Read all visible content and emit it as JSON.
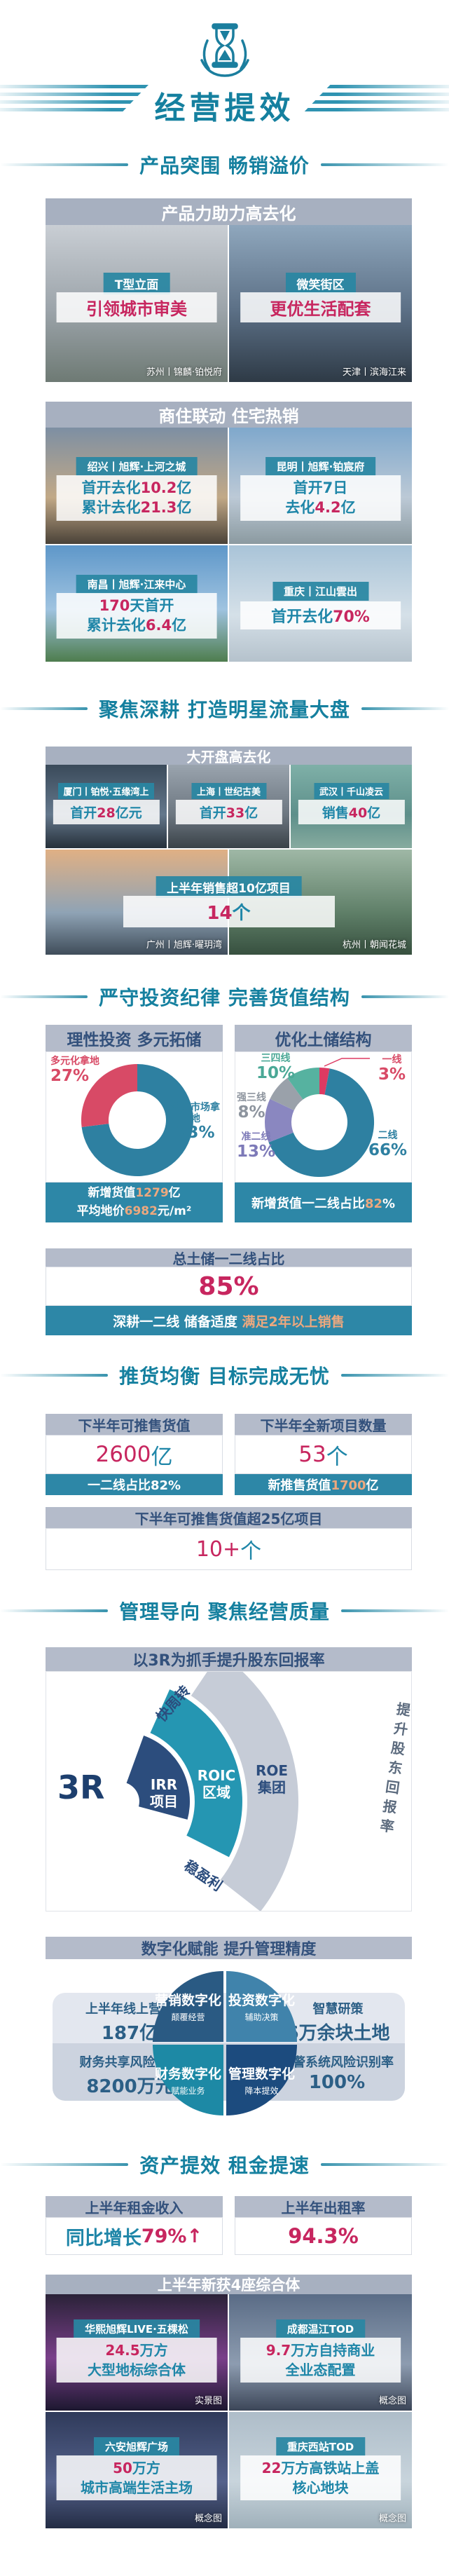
{
  "page_title": "经营提效",
  "headings": {
    "s1": "产品突围 畅销溢价",
    "s2": "聚焦深耕 打造明星流量大盘",
    "s3": "严守投资纪律 完善货值结构",
    "s4": "推货均衡 目标完成无忧",
    "s5": "管理导向 聚焦经营质量",
    "s6": "资产提效 租金提速"
  },
  "panel_product": {
    "header": "产品力助力高去化",
    "tiles": [
      {
        "banner": "T型立面",
        "line": [
          {
            "t": "引领城市审美",
            "c": "red"
          }
        ],
        "caption": "苏州丨锦麟·铂悦府"
      },
      {
        "banner": "微笑街区",
        "line": [
          {
            "t": "更优生活配套",
            "c": "red"
          }
        ],
        "caption": "天津丨滨海江来"
      }
    ]
  },
  "panel_shangzhu": {
    "header": "商住联动 住宅热销",
    "tiles": [
      {
        "banner": "绍兴丨旭辉·上河之城",
        "lines": [
          [
            {
              "t": "首开去化",
              "c": "teal"
            },
            {
              "t": "10.2",
              "c": "red"
            },
            {
              "t": "亿",
              "c": "teal"
            }
          ],
          [
            {
              "t": "累计去化",
              "c": "teal"
            },
            {
              "t": "21.3",
              "c": "red"
            },
            {
              "t": "亿",
              "c": "teal"
            }
          ]
        ]
      },
      {
        "banner": "昆明丨旭辉·铂宸府",
        "lines": [
          [
            {
              "t": "首开7日",
              "c": "teal"
            }
          ],
          [
            {
              "t": "去化",
              "c": "teal"
            },
            {
              "t": "4.2",
              "c": "red"
            },
            {
              "t": "亿",
              "c": "teal"
            }
          ]
        ]
      },
      {
        "banner": "南昌丨旭辉·江来中心",
        "lines": [
          [
            {
              "t": "170",
              "c": "red"
            },
            {
              "t": "天首开",
              "c": "teal"
            }
          ],
          [
            {
              "t": "累计去化",
              "c": "teal"
            },
            {
              "t": "6.4",
              "c": "red"
            },
            {
              "t": "亿",
              "c": "teal"
            }
          ]
        ]
      },
      {
        "banner": "重庆丨江山雲出",
        "lines": [
          [
            {
              "t": "首开去化",
              "c": "teal"
            },
            {
              "t": "70%",
              "c": "red"
            }
          ]
        ]
      }
    ]
  },
  "panel_dakaipan": {
    "header": "大开盘高去化",
    "tiles": [
      {
        "banner": "厦门丨铂悦·五缘湾上",
        "line": [
          {
            "t": "首开",
            "c": "teal"
          },
          {
            "t": "28",
            "c": "red"
          },
          {
            "t": "亿元",
            "c": "teal"
          }
        ]
      },
      {
        "banner": "上海丨世纪古美",
        "line": [
          {
            "t": "首开",
            "c": "teal"
          },
          {
            "t": "33",
            "c": "red"
          },
          {
            "t": "亿",
            "c": "teal"
          }
        ]
      },
      {
        "banner": "武汉丨千山凌云",
        "line": [
          {
            "t": "销售",
            "c": "teal"
          },
          {
            "t": "40",
            "c": "red"
          },
          {
            "t": "亿",
            "c": "teal"
          }
        ]
      }
    ],
    "overlay": {
      "banner": "上半年销售超10亿项目",
      "line": [
        {
          "t": "14",
          "c": "red"
        },
        {
          "t": "个",
          "c": "teal"
        }
      ]
    },
    "captions": [
      "广州丨旭辉·曜玥湾",
      "杭州丨朝闻花城"
    ]
  },
  "invest": {
    "left": {
      "header": "理性投资 多元拓储",
      "labels": [
        {
          "name": "多元化拿地",
          "pct": "27%"
        },
        {
          "name": "公开市场拿地",
          "pct": "73%"
        }
      ],
      "footer1": [
        {
          "t": "新增货值",
          "c": "white"
        },
        {
          "t": "1279",
          "c": "orange"
        },
        {
          "t": "亿",
          "c": "white"
        }
      ],
      "footer2": [
        {
          "t": "平均地价",
          "c": "white"
        },
        {
          "t": "6982",
          "c": "orange"
        },
        {
          "t": "元/m²",
          "c": "white"
        }
      ]
    },
    "right": {
      "header": "优化土储结构",
      "labels": [
        {
          "name": "三四线",
          "pct": "10%"
        },
        {
          "name": "一线",
          "pct": "3%"
        },
        {
          "name": "强三线",
          "pct": "8%"
        },
        {
          "name": "准二线",
          "pct": "13%"
        },
        {
          "name": "二线",
          "pct": "66%"
        }
      ],
      "footer1": [
        {
          "t": "新增货值一二线占比",
          "c": "white"
        },
        {
          "t": "82",
          "c": "orange"
        },
        {
          "t": "%",
          "c": "white"
        }
      ]
    }
  },
  "chart_data": [
    {
      "type": "pie",
      "title": "理性投资 多元拓储",
      "labels": [
        "公开市场拿地",
        "多元化拿地"
      ],
      "values": [
        73,
        27
      ],
      "colors": [
        "#2e80a1",
        "#d84a66"
      ],
      "hole": 0.52,
      "note": "新增货值1279亿 平均地价6982元/m²"
    },
    {
      "type": "pie",
      "title": "优化土储结构",
      "labels": [
        "一线",
        "二线",
        "准二线",
        "强三线",
        "三四线"
      ],
      "values": [
        3,
        66,
        13,
        8,
        10
      ],
      "colors": [
        "#dd3a62",
        "#2e80a1",
        "#8a87c0",
        "#9aa1aa",
        "#56b2a0"
      ],
      "hole": 0.52,
      "note": "新增货值一二线占比82%"
    }
  ],
  "landbank": {
    "header": "总土储一二线占比",
    "value": "85%",
    "bar": [
      {
        "t": "深耕一二线 储备适度 ",
        "c": "white"
      },
      {
        "t": "满足2年以上销售",
        "c": "orange"
      }
    ]
  },
  "push": {
    "card1": {
      "header": "下半年可推售货值",
      "value": [
        {
          "t": "2600",
          "c": "red"
        },
        {
          "t": "亿",
          "c": "teal"
        }
      ],
      "footer": [
        {
          "t": "一二线占比82%",
          "c": "white"
        }
      ]
    },
    "card2": {
      "header": "下半年全新项目数量",
      "value": [
        {
          "t": "53",
          "c": "red"
        },
        {
          "t": "个",
          "c": "teal"
        }
      ],
      "footer": [
        {
          "t": "新推售货值",
          "c": "white"
        },
        {
          "t": "1700",
          "c": "orange"
        },
        {
          "t": "亿",
          "c": "white"
        }
      ]
    },
    "wide": {
      "header": "下半年可推售货值超25亿项目",
      "value": [
        {
          "t": "10+",
          "c": "red"
        },
        {
          "t": "个",
          "c": "teal"
        }
      ]
    }
  },
  "r3": {
    "header": "以3R为抓手提升股东回报率",
    "center_label": "3R",
    "rings": [
      {
        "line1": "IRR",
        "line2": "项目",
        "color": "#2c4d7d"
      },
      {
        "line1": "ROIC",
        "line2": "区域",
        "color": "#2596b2"
      },
      {
        "line1": "ROE",
        "line2": "集团",
        "color": "#c6ccd7"
      }
    ],
    "axis_labels": {
      "top": "快周转",
      "bottom": "稳盈利",
      "right": "提升股东回报率"
    }
  },
  "digital": {
    "header": "数字化赋能 提升管理精度",
    "stats": [
      {
        "title": "上半年线上营销",
        "value": "187亿"
      },
      {
        "title": "智慧研策",
        "value": "6万余块土地"
      },
      {
        "title": "财务共享风险拦截",
        "value": "8200万元"
      },
      {
        "title": "预警系统风险识别率",
        "value": "100%"
      }
    ],
    "quads": [
      {
        "title": "营销数字化",
        "sub": "颠覆经营",
        "color": "#2a5a83"
      },
      {
        "title": "投资数字化",
        "sub": "辅助决策",
        "color": "#4083ab"
      },
      {
        "title": "财务数字化",
        "sub": "赋能业务",
        "color": "#1d89a5"
      },
      {
        "title": "管理数字化",
        "sub": "降本提效",
        "color": "#1c4b7e"
      }
    ]
  },
  "asset": {
    "card1": {
      "header": "上半年租金收入",
      "value": [
        {
          "t": "同比增长",
          "c": "teal"
        },
        {
          "t": "79%",
          "c": "red"
        },
        {
          "t": "↑",
          "c": "red"
        }
      ]
    },
    "card2": {
      "header": "上半年出租率",
      "value": [
        {
          "t": "94.3%",
          "c": "red"
        }
      ]
    },
    "panel": {
      "header": "上半年新获4座综合体",
      "tiles": [
        {
          "banner": "华熙旭辉LIVE·五棵松",
          "lines": [
            [
              {
                "t": "24.5",
                "c": "red"
              },
              {
                "t": "万方",
                "c": "teal"
              }
            ],
            [
              {
                "t": "大型地标综合体",
                "c": "teal"
              }
            ]
          ],
          "caption": "实景图"
        },
        {
          "banner": "成都温江TOD",
          "lines": [
            [
              {
                "t": "9.7",
                "c": "red"
              },
              {
                "t": "万方自持商业",
                "c": "teal"
              }
            ],
            [
              {
                "t": "全业态配置",
                "c": "teal"
              }
            ]
          ],
          "caption": "概念图"
        },
        {
          "banner": "六安旭辉广场",
          "lines": [
            [
              {
                "t": "50",
                "c": "red"
              },
              {
                "t": "万方",
                "c": "teal"
              }
            ],
            [
              {
                "t": "城市高端生活主场",
                "c": "teal"
              }
            ]
          ],
          "caption": "概念图"
        },
        {
          "banner": "重庆西站TOD",
          "lines": [
            [
              {
                "t": "22",
                "c": "red"
              },
              {
                "t": "万方高铁站上盖",
                "c": "teal"
              }
            ],
            [
              {
                "t": "核心地块",
                "c": "teal"
              }
            ]
          ],
          "caption": "概念图"
        }
      ]
    }
  }
}
